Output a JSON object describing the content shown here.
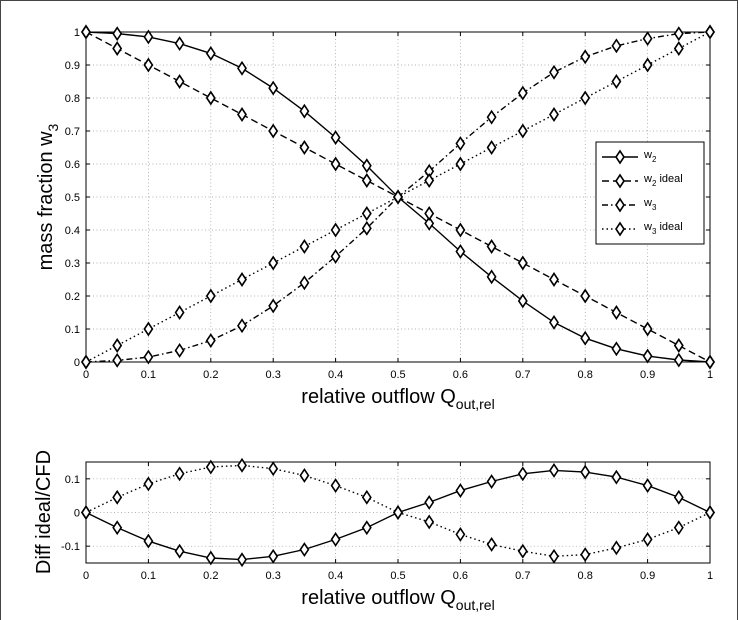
{
  "chart_data": [
    {
      "type": "line",
      "ylabel": "mass fraction w",
      "ylabel_sub": "3",
      "xlabel": "relative outflow Q",
      "xlabel_sub": "out,rel",
      "xlim": [
        0,
        1
      ],
      "ylim": [
        0,
        1
      ],
      "xticks": [
        0,
        0.1,
        0.2,
        0.3,
        0.4,
        0.5,
        0.6,
        0.7,
        0.8,
        0.9,
        1
      ],
      "yticks": [
        0,
        0.1,
        0.2,
        0.3,
        0.4,
        0.5,
        0.6,
        0.7,
        0.8,
        0.9,
        1
      ],
      "tick_labels_x": [
        "0",
        "0.1",
        "0.2",
        "0.3",
        "0.4",
        "0.5",
        "0.6",
        "0.7",
        "0.8",
        "0.9",
        "1"
      ],
      "tick_labels_y": [
        "0",
        "0.1",
        "0.2",
        "0.3",
        "0.4",
        "0.5",
        "0.6",
        "0.7",
        "0.8",
        "0.9",
        "1"
      ],
      "grid": true,
      "legend_position": "right",
      "x": [
        0,
        0.05,
        0.1,
        0.15,
        0.2,
        0.25,
        0.3,
        0.35,
        0.4,
        0.45,
        0.5,
        0.55,
        0.6,
        0.65,
        0.7,
        0.75,
        0.8,
        0.85,
        0.9,
        0.95,
        1
      ],
      "series": [
        {
          "name": "w",
          "name_sub": "2",
          "line_style": "solid",
          "values": [
            1.0,
            0.995,
            0.985,
            0.965,
            0.935,
            0.89,
            0.83,
            0.76,
            0.68,
            0.595,
            0.5,
            0.42,
            0.335,
            0.258,
            0.185,
            0.12,
            0.072,
            0.04,
            0.018,
            0.006,
            0.0
          ]
        },
        {
          "name": "w",
          "name_sub": "2",
          "name_suffix": " ideal",
          "line_style": "dashed",
          "values": [
            1.0,
            0.95,
            0.9,
            0.85,
            0.8,
            0.75,
            0.7,
            0.65,
            0.6,
            0.55,
            0.5,
            0.45,
            0.4,
            0.35,
            0.3,
            0.25,
            0.2,
            0.15,
            0.1,
            0.05,
            0.0
          ]
        },
        {
          "name": "w",
          "name_sub": "3",
          "line_style": "dashdot",
          "values": [
            0.0,
            0.005,
            0.015,
            0.035,
            0.065,
            0.11,
            0.17,
            0.24,
            0.32,
            0.405,
            0.5,
            0.578,
            0.662,
            0.742,
            0.815,
            0.878,
            0.925,
            0.958,
            0.98,
            0.995,
            1.0
          ]
        },
        {
          "name": "w",
          "name_sub": "3",
          "name_suffix": " ideal",
          "line_style": "dotted",
          "values": [
            0.0,
            0.05,
            0.1,
            0.15,
            0.2,
            0.25,
            0.3,
            0.35,
            0.4,
            0.45,
            0.5,
            0.55,
            0.6,
            0.65,
            0.7,
            0.75,
            0.8,
            0.85,
            0.9,
            0.95,
            1.0
          ]
        }
      ]
    },
    {
      "type": "line",
      "ylabel": "Diff ideal/CFD",
      "xlabel": "relative outflow Q",
      "xlabel_sub": "out,rel",
      "xlim": [
        0,
        1
      ],
      "ylim": [
        -0.15,
        0.15
      ],
      "xticks": [
        0,
        0.1,
        0.2,
        0.3,
        0.4,
        0.5,
        0.6,
        0.7,
        0.8,
        0.9,
        1
      ],
      "yticks": [
        -0.1,
        0,
        0.1
      ],
      "tick_labels_x": [
        "0",
        "0.1",
        "0.2",
        "0.3",
        "0.4",
        "0.5",
        "0.6",
        "0.7",
        "0.8",
        "0.9",
        "1"
      ],
      "tick_labels_y": [
        "-0.1",
        "0",
        "0.1"
      ],
      "grid": true,
      "x": [
        0,
        0.05,
        0.1,
        0.15,
        0.2,
        0.25,
        0.3,
        0.35,
        0.4,
        0.45,
        0.5,
        0.55,
        0.6,
        0.65,
        0.7,
        0.75,
        0.8,
        0.85,
        0.9,
        0.95,
        1
      ],
      "series": [
        {
          "line_style": "solid",
          "values": [
            0.0,
            -0.045,
            -0.085,
            -0.115,
            -0.135,
            -0.14,
            -0.13,
            -0.11,
            -0.08,
            -0.045,
            0.0,
            0.03,
            0.065,
            0.092,
            0.115,
            0.125,
            0.12,
            0.105,
            0.08,
            0.045,
            0.0
          ]
        },
        {
          "line_style": "dotted",
          "values": [
            0.0,
            0.045,
            0.085,
            0.115,
            0.135,
            0.14,
            0.13,
            0.11,
            0.08,
            0.045,
            0.0,
            -0.028,
            -0.065,
            -0.095,
            -0.115,
            -0.13,
            -0.125,
            -0.105,
            -0.08,
            -0.045,
            0.0
          ]
        }
      ]
    }
  ]
}
